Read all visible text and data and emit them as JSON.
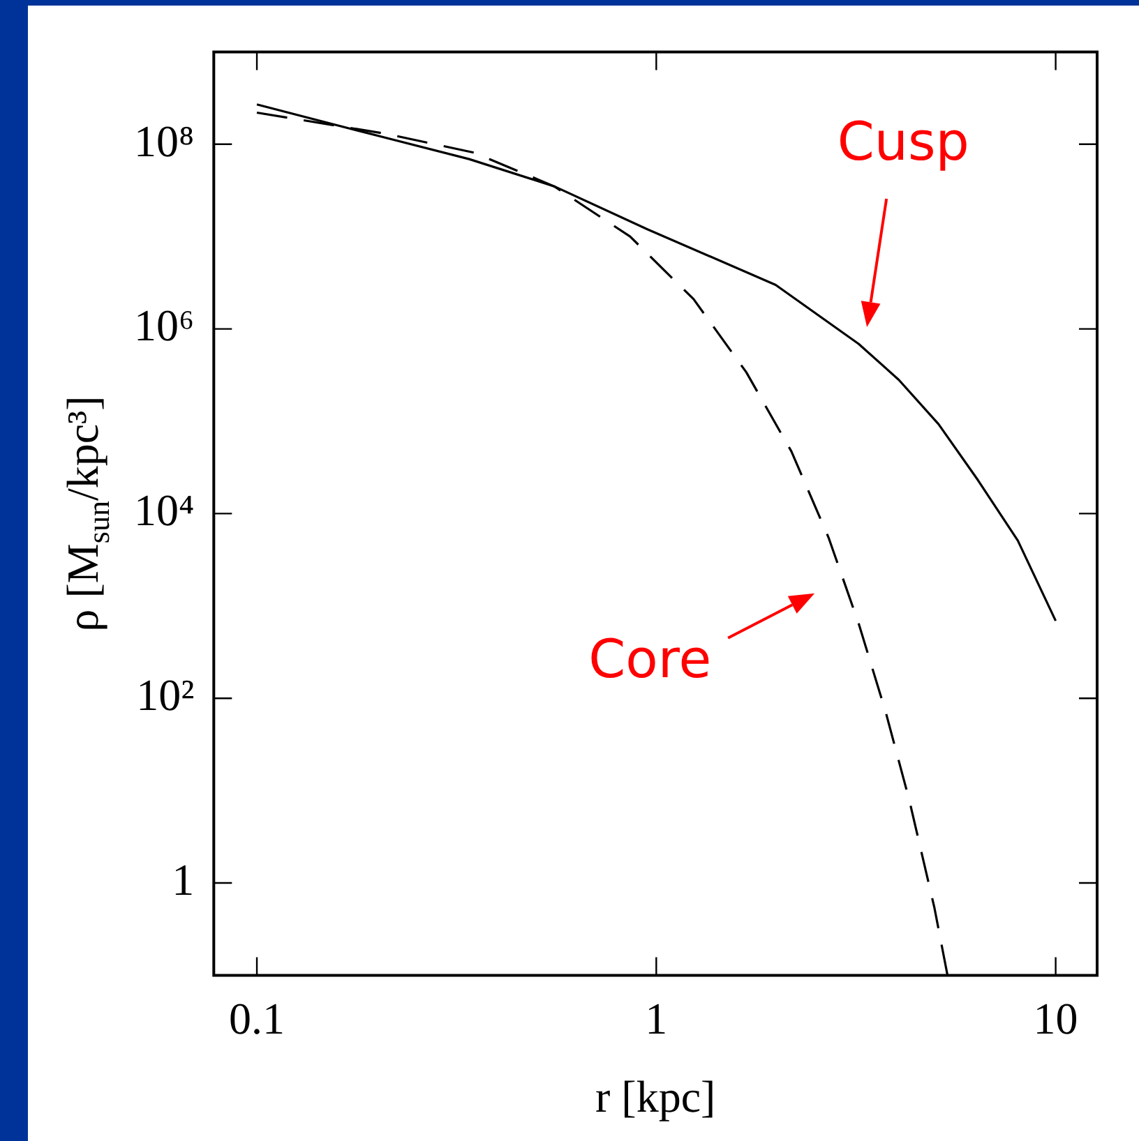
{
  "chart_data": {
    "type": "line",
    "xlabel": "r [kpc]",
    "ylabel": "ρ [M$_{sun}$/kpc³]",
    "log": "xy",
    "xlim": [
      0.078,
      12.7
    ],
    "ylim": [
      0.1,
      1000000000.0
    ],
    "xticks": [
      0.1,
      1,
      10
    ],
    "yticks": [
      1,
      {
        "value": 100,
        "label": "10²"
      },
      {
        "value": 10000,
        "label": "10⁴"
      },
      {
        "value": 1000000,
        "label": "10⁶"
      },
      {
        "value": 100000000,
        "label": "10⁸"
      }
    ],
    "series": [
      {
        "name": "Cusp",
        "type": "line",
        "color": "#000000",
        "line_style": "solid",
        "x": [
          0.1,
          0.206,
          0.34,
          0.555,
          0.95,
          1.99,
          3.21,
          4.05,
          5.09,
          6.39,
          8.04,
          10
        ],
        "values": [
          270000000.0,
          120000000.0,
          69000000.0,
          35000000.0,
          12000000.0,
          3000000.0,
          690000.0,
          280000.0,
          93000.0,
          23000.0,
          5100.0,
          690
        ]
      },
      {
        "name": "Core",
        "type": "line",
        "color": "#000000",
        "line_style": "dashed",
        "x": [
          0.1,
          0.21,
          0.35,
          0.555,
          0.86,
          1.24,
          1.68,
          2.18,
          2.7,
          3.21,
          3.75,
          4.3,
          4.97,
          5.36
        ],
        "values": [
          220000000.0,
          130000000.0,
          81000000.0,
          35000000.0,
          10000000.0,
          2100000.0,
          340000.0,
          47000.0,
          5500.0,
          650,
          72,
          7.9,
          0.54,
          0.1
        ]
      }
    ]
  }
}
